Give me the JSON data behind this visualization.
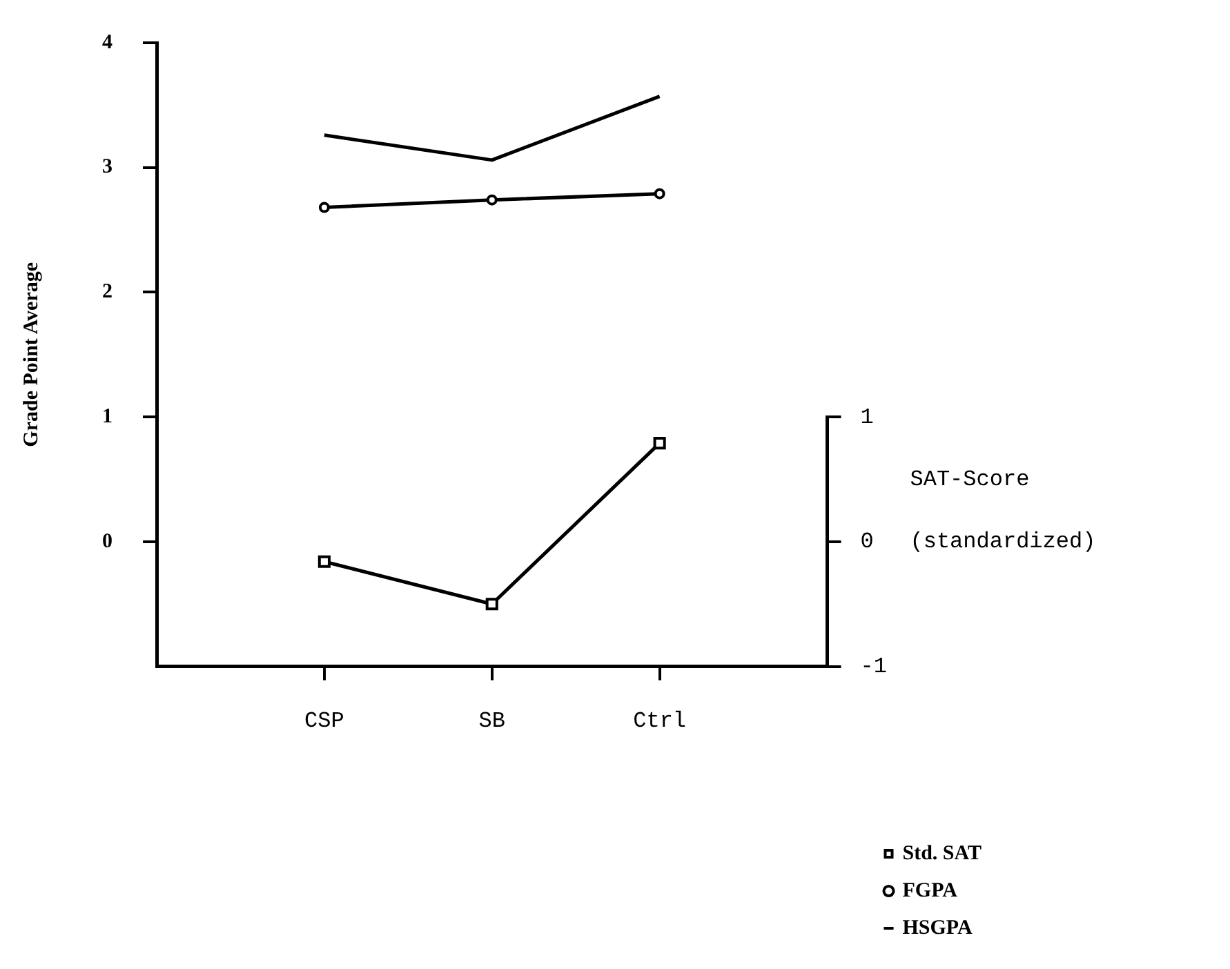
{
  "chart_data": {
    "type": "line",
    "ylabel": "Grade Point Average",
    "y2label": "SAT-Score (standardized)",
    "categories": [
      "CSP",
      "SB",
      "Ctrl"
    ],
    "series": [
      {
        "name": "Std. SAT",
        "color": "#000000",
        "values": [
          -0.16,
          -0.5,
          0.79
        ],
        "axis": "y2",
        "marker": "square"
      },
      {
        "name": "FGPA",
        "color": "#000000",
        "values": [
          2.68,
          2.74,
          2.79
        ],
        "marker": "circle"
      },
      {
        "name": "HSGPA",
        "color": "#000000",
        "values": [
          3.26,
          3.06,
          3.57
        ],
        "marker": "none"
      }
    ],
    "ylim": [
      -1,
      4
    ],
    "yticks": [
      0,
      1,
      2,
      3,
      4
    ],
    "y2lim": [
      -1,
      1
    ],
    "y2ticks": [
      -1,
      0,
      1
    ],
    "grid": false,
    "legend": "bottom right",
    "line_style": "solid"
  }
}
